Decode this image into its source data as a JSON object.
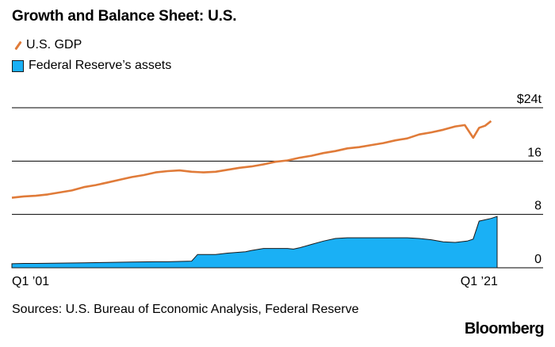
{
  "title": "Growth and Balance Sheet: U.S.",
  "source": "Sources: U.S. Bureau of Economic Analysis, Federal Reserve",
  "brand": "Bloomberg",
  "colors": {
    "gdp": "#e07b39",
    "fed": "#1ab0f5",
    "grid": "#000000"
  },
  "chart_data": {
    "type": "line",
    "title": "Growth and Balance Sheet: U.S.",
    "legend": [
      {
        "name": "U.S. GDP",
        "marker": "line"
      },
      {
        "name": "Federal Reserve’s assets",
        "marker": "area"
      }
    ],
    "x_tick_labels": [
      "Q1 ’01",
      "Q1 ’21"
    ],
    "x_range": [
      2001.0,
      2021.25
    ],
    "y_ticks": [
      {
        "value": 0,
        "label": "0"
      },
      {
        "value": 8,
        "label": "8"
      },
      {
        "value": 16,
        "label": "16"
      },
      {
        "value": 24,
        "label": "$24t"
      }
    ],
    "ylim": [
      0,
      24
    ],
    "grid": true,
    "series": [
      {
        "name": "U.S. GDP",
        "kind": "line",
        "x": [
          2001.0,
          2001.5,
          2002.0,
          2002.5,
          2003.0,
          2003.5,
          2004.0,
          2004.5,
          2005.0,
          2005.5,
          2006.0,
          2006.5,
          2007.0,
          2007.5,
          2008.0,
          2008.5,
          2009.0,
          2009.5,
          2010.0,
          2010.5,
          2011.0,
          2011.5,
          2012.0,
          2012.5,
          2013.0,
          2013.5,
          2014.0,
          2014.5,
          2015.0,
          2015.5,
          2016.0,
          2016.5,
          2017.0,
          2017.5,
          2018.0,
          2018.5,
          2019.0,
          2019.5,
          2019.9,
          2020.25,
          2020.5,
          2020.75,
          2021.0
        ],
        "values": [
          10.5,
          10.7,
          10.8,
          11.0,
          11.3,
          11.6,
          12.1,
          12.4,
          12.8,
          13.2,
          13.6,
          13.9,
          14.3,
          14.5,
          14.6,
          14.4,
          14.3,
          14.4,
          14.7,
          15.0,
          15.2,
          15.5,
          15.9,
          16.1,
          16.5,
          16.8,
          17.2,
          17.5,
          17.9,
          18.1,
          18.4,
          18.7,
          19.1,
          19.4,
          20.0,
          20.3,
          20.7,
          21.2,
          21.4,
          19.5,
          21.0,
          21.3,
          22.0
        ]
      },
      {
        "name": "Federal Reserve’s assets",
        "kind": "area",
        "x": [
          2001.0,
          2001.5,
          2002.0,
          2003.0,
          2004.0,
          2005.0,
          2006.0,
          2007.0,
          2007.5,
          2008.5,
          2008.75,
          2009.0,
          2009.5,
          2010.0,
          2010.75,
          2011.0,
          2011.5,
          2012.0,
          2012.5,
          2012.75,
          2013.0,
          2013.5,
          2014.0,
          2014.5,
          2015.0,
          2016.0,
          2017.0,
          2017.5,
          2018.0,
          2018.5,
          2019.0,
          2019.5,
          2020.0,
          2020.25,
          2020.5,
          2021.0,
          2021.25
        ],
        "values": [
          0.6,
          0.65,
          0.65,
          0.7,
          0.75,
          0.8,
          0.85,
          0.9,
          0.9,
          1.0,
          2.0,
          2.0,
          2.0,
          2.2,
          2.4,
          2.6,
          2.9,
          2.9,
          2.9,
          2.8,
          3.0,
          3.5,
          4.0,
          4.4,
          4.5,
          4.5,
          4.5,
          4.5,
          4.4,
          4.2,
          3.9,
          3.8,
          4.0,
          4.3,
          7.0,
          7.4,
          7.7
        ]
      }
    ]
  }
}
